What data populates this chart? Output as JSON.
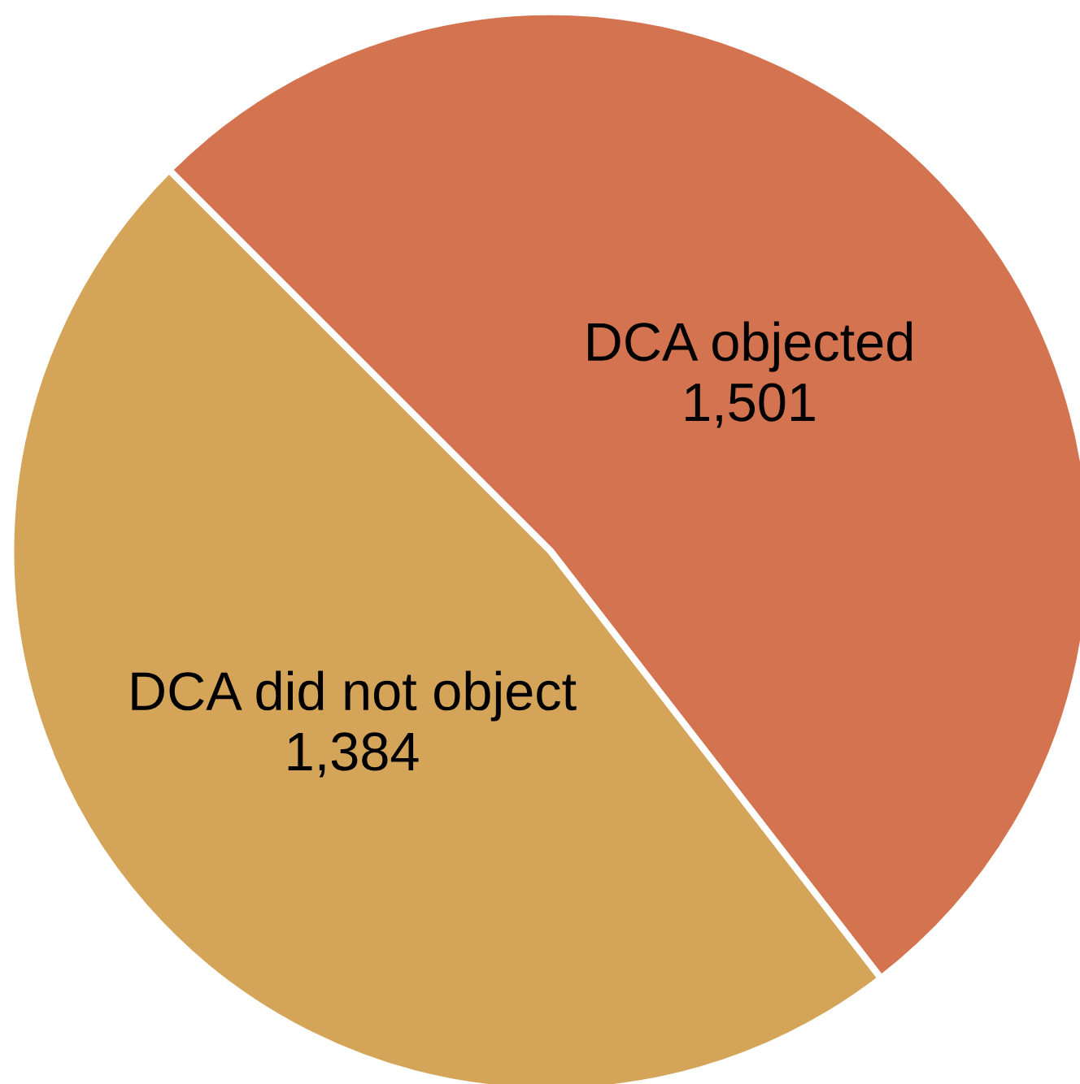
{
  "chart_data": {
    "type": "pie",
    "categories": [
      "DCA objected",
      "DCA did not object"
    ],
    "values": [
      1501,
      1384
    ],
    "colors": [
      "#d4734f",
      "#d4a459"
    ],
    "value_labels": [
      "1,501",
      "1,384"
    ],
    "legend": false
  }
}
